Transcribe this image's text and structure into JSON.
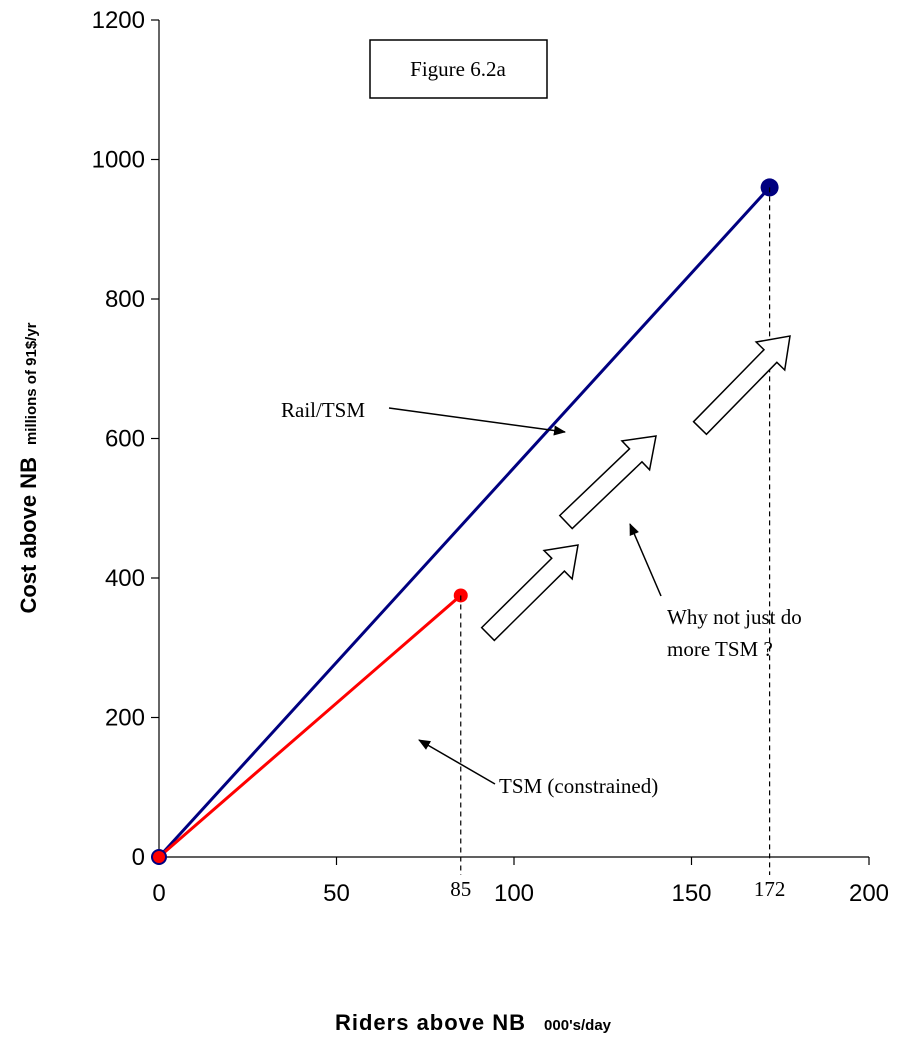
{
  "chart_data": {
    "type": "line",
    "figure_label": "Figure 6.2a",
    "xlabel_main": "Riders above NB",
    "xlabel_unit": "000's/day",
    "ylabel_main": "Cost above NB",
    "ylabel_unit": "millions of 91$/yr",
    "xlim": [
      0,
      200
    ],
    "ylim": [
      0,
      1200
    ],
    "x_ticks": [
      0,
      50,
      100,
      150,
      200
    ],
    "y_ticks": [
      0,
      200,
      400,
      600,
      800,
      1000,
      1200
    ],
    "grid": false,
    "series": [
      {
        "name": "Rail/TSM",
        "color": "#000080",
        "x": [
          0,
          172
        ],
        "y": [
          0,
          960
        ]
      },
      {
        "name": "TSM  (constrained)",
        "color": "#ff0000",
        "x": [
          0,
          85
        ],
        "y": [
          0,
          375
        ]
      }
    ],
    "marker_labels": [
      {
        "text": "85",
        "x": 85
      },
      {
        "text": "172",
        "x": 172
      }
    ],
    "annotations": {
      "rail_tsm": "Rail/TSM",
      "tsm_constrained": "TSM  (constrained)",
      "why_line1": "Why not just do",
      "why_line2": "more TSM  ?"
    }
  }
}
